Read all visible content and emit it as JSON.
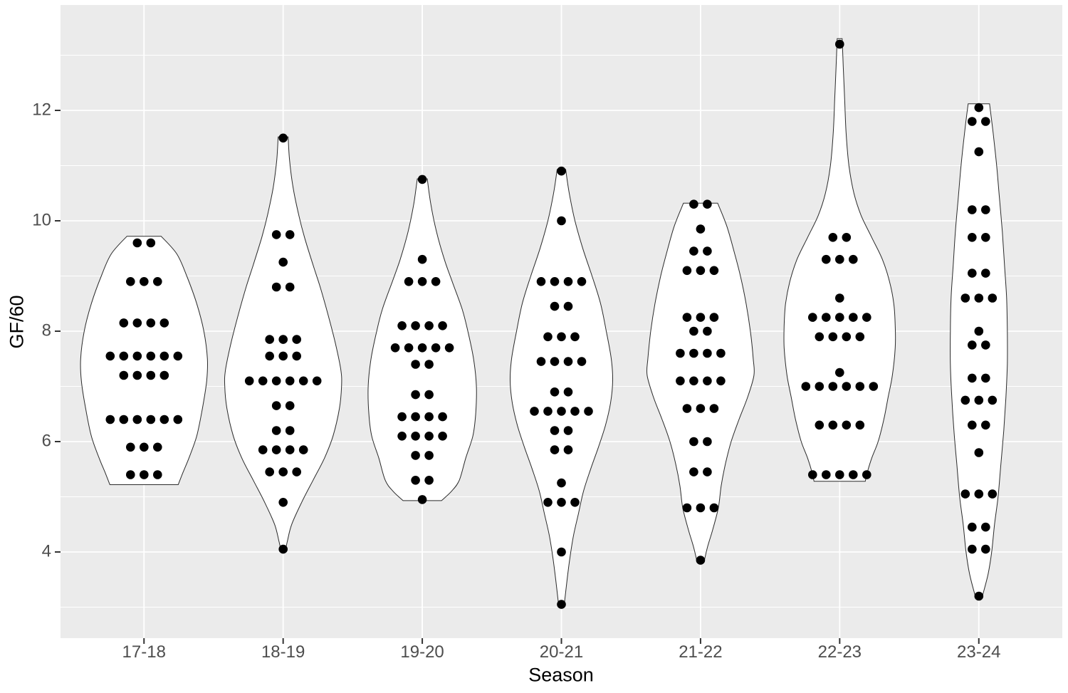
{
  "chart_data": {
    "type": "violin",
    "subtype": "violin-with-dotplot",
    "title": "",
    "xlabel": "Season",
    "ylabel": "GF/60",
    "categories": [
      "17-18",
      "18-19",
      "19-20",
      "20-21",
      "21-22",
      "22-23",
      "23-24"
    ],
    "y_ticks": [
      12,
      10,
      8,
      6,
      4
    ],
    "y_minor_ticks": [
      13,
      11,
      9,
      7,
      5,
      3
    ],
    "ylim": [
      2.4,
      13.9
    ],
    "grid": true,
    "legend_position": "none",
    "panel_bg": "#EBEBEB",
    "gridline_color": "#FFFFFF",
    "axis_text_color": "#4D4D4D",
    "tick_mark_color": "#333333",
    "dot_color": "#000000",
    "violin_fill": "#FFFFFF",
    "violin_stroke": "#2a2a2a",
    "series": [
      {
        "season": "17-18",
        "dot_rows": [
          [
            9.6,
            2
          ],
          [
            8.9,
            3
          ],
          [
            8.15,
            4
          ],
          [
            7.55,
            6
          ],
          [
            7.2,
            4
          ],
          [
            6.4,
            6
          ],
          [
            5.9,
            3
          ],
          [
            5.4,
            3
          ]
        ],
        "outline": [
          [
            9.72,
            24
          ],
          [
            9.4,
            46
          ],
          [
            9.0,
            60
          ],
          [
            8.5,
            74
          ],
          [
            8.0,
            84
          ],
          [
            7.5,
            89
          ],
          [
            7.1,
            88
          ],
          [
            6.6,
            82
          ],
          [
            6.1,
            74
          ],
          [
            5.7,
            63
          ],
          [
            5.45,
            55
          ],
          [
            5.22,
            48
          ]
        ]
      },
      {
        "season": "18-19",
        "dot_rows": [
          [
            11.5,
            1
          ],
          [
            9.75,
            2
          ],
          [
            9.25,
            1
          ],
          [
            8.8,
            2
          ],
          [
            7.85,
            3
          ],
          [
            7.55,
            3
          ],
          [
            7.1,
            6
          ],
          [
            6.65,
            2
          ],
          [
            6.2,
            2
          ],
          [
            5.85,
            4
          ],
          [
            5.45,
            3
          ],
          [
            4.9,
            1
          ],
          [
            4.05,
            1
          ]
        ],
        "outline": [
          [
            11.52,
            7
          ],
          [
            11.1,
            9
          ],
          [
            10.6,
            14
          ],
          [
            10.1,
            22
          ],
          [
            9.7,
            30
          ],
          [
            9.2,
            42
          ],
          [
            8.8,
            52
          ],
          [
            8.3,
            63
          ],
          [
            7.8,
            73
          ],
          [
            7.3,
            81
          ],
          [
            7.0,
            82
          ],
          [
            6.6,
            79
          ],
          [
            6.1,
            70
          ],
          [
            5.7,
            58
          ],
          [
            5.3,
            42
          ],
          [
            4.9,
            26
          ],
          [
            4.5,
            12
          ],
          [
            4.2,
            6
          ],
          [
            4.02,
            3
          ]
        ]
      },
      {
        "season": "19-20",
        "dot_rows": [
          [
            10.75,
            1
          ],
          [
            9.3,
            1
          ],
          [
            8.9,
            3
          ],
          [
            8.1,
            4
          ],
          [
            7.7,
            5
          ],
          [
            7.4,
            2
          ],
          [
            6.85,
            2
          ],
          [
            6.45,
            4
          ],
          [
            6.1,
            4
          ],
          [
            5.75,
            2
          ],
          [
            5.3,
            2
          ],
          [
            4.95,
            1
          ]
        ],
        "outline": [
          [
            10.76,
            7
          ],
          [
            10.3,
            12
          ],
          [
            9.8,
            20
          ],
          [
            9.3,
            31
          ],
          [
            8.9,
            42
          ],
          [
            8.4,
            56
          ],
          [
            8.0,
            64
          ],
          [
            7.5,
            72
          ],
          [
            7.0,
            76
          ],
          [
            6.5,
            75
          ],
          [
            6.1,
            71
          ],
          [
            5.7,
            61
          ],
          [
            5.3,
            52
          ],
          [
            5.1,
            41
          ],
          [
            4.93,
            27
          ]
        ]
      },
      {
        "season": "20-21",
        "dot_rows": [
          [
            10.9,
            1
          ],
          [
            10.0,
            1
          ],
          [
            8.9,
            4
          ],
          [
            8.45,
            2
          ],
          [
            7.9,
            3
          ],
          [
            7.45,
            4
          ],
          [
            6.9,
            2
          ],
          [
            6.55,
            5
          ],
          [
            6.2,
            2
          ],
          [
            5.85,
            2
          ],
          [
            5.25,
            1
          ],
          [
            4.9,
            3
          ],
          [
            4.0,
            1
          ],
          [
            3.05,
            1
          ]
        ],
        "outline": [
          [
            10.93,
            6
          ],
          [
            10.5,
            11
          ],
          [
            10.0,
            19
          ],
          [
            9.5,
            30
          ],
          [
            9.0,
            43
          ],
          [
            8.5,
            55
          ],
          [
            8.0,
            63
          ],
          [
            7.5,
            70
          ],
          [
            7.1,
            72
          ],
          [
            6.7,
            69
          ],
          [
            6.3,
            62
          ],
          [
            5.9,
            52
          ],
          [
            5.5,
            41
          ],
          [
            5.1,
            31
          ],
          [
            4.7,
            24
          ],
          [
            4.3,
            17
          ],
          [
            3.9,
            12
          ],
          [
            3.5,
            8
          ],
          [
            3.05,
            4
          ]
        ]
      },
      {
        "season": "21-22",
        "dot_rows": [
          [
            10.3,
            2
          ],
          [
            9.85,
            1
          ],
          [
            9.45,
            2
          ],
          [
            9.1,
            3
          ],
          [
            8.25,
            3
          ],
          [
            8.0,
            2
          ],
          [
            7.6,
            4
          ],
          [
            7.1,
            4
          ],
          [
            6.6,
            3
          ],
          [
            6.0,
            2
          ],
          [
            5.45,
            2
          ],
          [
            4.8,
            3
          ],
          [
            3.85,
            1
          ]
        ],
        "outline": [
          [
            10.32,
            24
          ],
          [
            9.9,
            37
          ],
          [
            9.4,
            48
          ],
          [
            9.0,
            56
          ],
          [
            8.5,
            64
          ],
          [
            8.0,
            70
          ],
          [
            7.5,
            74
          ],
          [
            7.2,
            75
          ],
          [
            6.8,
            66
          ],
          [
            6.4,
            54
          ],
          [
            6.0,
            43
          ],
          [
            5.6,
            35
          ],
          [
            5.2,
            29
          ],
          [
            4.8,
            25
          ],
          [
            4.4,
            17
          ],
          [
            4.1,
            10
          ],
          [
            3.83,
            5
          ]
        ]
      },
      {
        "season": "22-23",
        "dot_rows": [
          [
            13.2,
            1
          ],
          [
            9.7,
            2
          ],
          [
            9.3,
            3
          ],
          [
            8.6,
            1
          ],
          [
            8.25,
            5
          ],
          [
            7.9,
            4
          ],
          [
            7.25,
            1
          ],
          [
            7.0,
            6
          ],
          [
            6.3,
            4
          ],
          [
            5.4,
            5
          ]
        ],
        "outline": [
          [
            13.3,
            3.5
          ],
          [
            12.8,
            5
          ],
          [
            12.2,
            7
          ],
          [
            11.6,
            9
          ],
          [
            11.0,
            13
          ],
          [
            10.5,
            20
          ],
          [
            10.1,
            30
          ],
          [
            9.7,
            45
          ],
          [
            9.3,
            60
          ],
          [
            8.9,
            70
          ],
          [
            8.5,
            76
          ],
          [
            8.1,
            78
          ],
          [
            7.7,
            78
          ],
          [
            7.2,
            74
          ],
          [
            6.8,
            68
          ],
          [
            6.4,
            62
          ],
          [
            6.0,
            54
          ],
          [
            5.7,
            45
          ],
          [
            5.45,
            39
          ],
          [
            5.28,
            36
          ]
        ]
      },
      {
        "season": "23-24",
        "dot_rows": [
          [
            12.05,
            1
          ],
          [
            11.8,
            2
          ],
          [
            11.25,
            1
          ],
          [
            10.2,
            2
          ],
          [
            9.7,
            2
          ],
          [
            9.05,
            2
          ],
          [
            8.6,
            3
          ],
          [
            8.0,
            1
          ],
          [
            7.75,
            2
          ],
          [
            7.15,
            2
          ],
          [
            6.75,
            3
          ],
          [
            6.3,
            2
          ],
          [
            5.8,
            1
          ],
          [
            5.05,
            3
          ],
          [
            4.45,
            2
          ],
          [
            4.05,
            2
          ],
          [
            3.2,
            1
          ]
        ],
        "outline": [
          [
            12.12,
            15
          ],
          [
            11.6,
            20
          ],
          [
            11.0,
            25
          ],
          [
            10.4,
            29
          ],
          [
            9.8,
            33
          ],
          [
            9.2,
            36
          ],
          [
            8.6,
            39
          ],
          [
            8.0,
            40
          ],
          [
            7.4,
            40
          ],
          [
            6.8,
            38
          ],
          [
            6.2,
            35
          ],
          [
            5.6,
            31
          ],
          [
            5.0,
            27
          ],
          [
            4.5,
            22
          ],
          [
            4.0,
            18
          ],
          [
            3.6,
            13
          ],
          [
            3.2,
            5
          ]
        ]
      }
    ]
  }
}
